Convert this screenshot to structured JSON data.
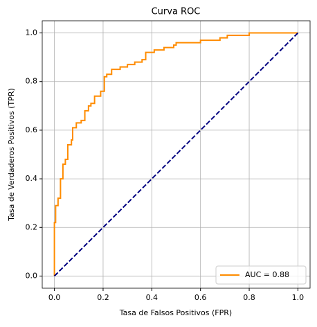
{
  "chart_data": {
    "type": "line",
    "title": "Curva ROC",
    "xlabel": "Tasa de Falsos Positivos (FPR)",
    "ylabel": "Tasa de Verdaderos Positivos (TPR)",
    "xlim": [
      -0.05,
      1.05
    ],
    "ylim": [
      -0.05,
      1.05
    ],
    "xticks": [
      {
        "value": 0,
        "label": "0.0"
      },
      0.2,
      0.4,
      0.6,
      0.8,
      {
        "value": 1,
        "label": "1.0"
      }
    ],
    "yticks": [
      {
        "value": 0,
        "label": "0.0"
      },
      0.2,
      0.4,
      0.6,
      0.8,
      {
        "value": 1,
        "label": "1.0"
      }
    ],
    "grid": true,
    "legend": "lower right",
    "series": [
      {
        "name": "AUC = 0.88",
        "color": "#ff8c00",
        "linestyle": "solid",
        "x": [
          0,
          0,
          0.005,
          0.005,
          0.015,
          0.015,
          0.025,
          0.025,
          0.035,
          0.035,
          0.045,
          0.045,
          0.055,
          0.055,
          0.07,
          0.07,
          0.075,
          0.075,
          0.09,
          0.09,
          0.11,
          0.11,
          0.125,
          0.125,
          0.14,
          0.14,
          0.15,
          0.15,
          0.165,
          0.165,
          0.19,
          0.19,
          0.205,
          0.205,
          0.215,
          0.215,
          0.235,
          0.235,
          0.27,
          0.27,
          0.3,
          0.3,
          0.33,
          0.33,
          0.36,
          0.36,
          0.375,
          0.375,
          0.41,
          0.41,
          0.45,
          0.45,
          0.49,
          0.49,
          0.5,
          0.5,
          0.6,
          0.6,
          0.68,
          0.68,
          0.71,
          0.71,
          0.8,
          0.8,
          1
        ],
        "values": [
          0,
          0.22,
          0.22,
          0.29,
          0.29,
          0.32,
          0.32,
          0.4,
          0.4,
          0.46,
          0.46,
          0.48,
          0.48,
          0.54,
          0.54,
          0.56,
          0.56,
          0.61,
          0.61,
          0.63,
          0.63,
          0.64,
          0.64,
          0.68,
          0.68,
          0.7,
          0.7,
          0.71,
          0.71,
          0.74,
          0.74,
          0.76,
          0.76,
          0.82,
          0.82,
          0.83,
          0.83,
          0.85,
          0.85,
          0.86,
          0.86,
          0.87,
          0.87,
          0.88,
          0.88,
          0.89,
          0.89,
          0.92,
          0.92,
          0.93,
          0.93,
          0.94,
          0.94,
          0.95,
          0.95,
          0.96,
          0.96,
          0.97,
          0.97,
          0.98,
          0.98,
          0.99,
          0.99,
          1,
          1
        ]
      },
      {
        "color": "#000080",
        "linestyle": "dashed",
        "x": [
          0,
          1
        ],
        "values": [
          0,
          1
        ]
      }
    ]
  }
}
